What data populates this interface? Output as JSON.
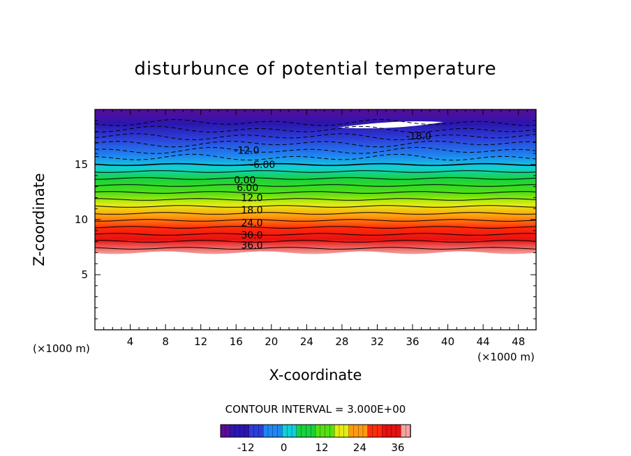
{
  "chart_data": {
    "type": "heatmap",
    "title": "disturbunce of potential temperature",
    "xlabel": "X-coordinate",
    "ylabel": "Z-coordinate",
    "x_unit": "(×1000 m)",
    "y_unit": "(×1000 m)",
    "xlim": [
      0,
      50
    ],
    "ylim": [
      0,
      20
    ],
    "x_ticks": [
      4,
      8,
      12,
      16,
      20,
      24,
      28,
      32,
      36,
      40,
      44,
      48
    ],
    "y_ticks": [
      5,
      10,
      15
    ],
    "field_bottom_z": 7,
    "contour_interval_label": "CONTOUR INTERVAL = 3.000E+00",
    "contour_interval": 3,
    "contour_labels": [
      {
        "text": "-18.0",
        "x": 36.7,
        "z": 17.6
      },
      {
        "text": "-12.0",
        "x": 17.2,
        "z": 16.3
      },
      {
        "text": "-6.00",
        "x": 19.0,
        "z": 15.0
      },
      {
        "text": "0.00",
        "x": 17.0,
        "z": 13.6
      },
      {
        "text": "6.00",
        "x": 17.3,
        "z": 12.9
      },
      {
        "text": "12.0",
        "x": 17.8,
        "z": 12.0
      },
      {
        "text": "18.0",
        "x": 17.8,
        "z": 10.9
      },
      {
        "text": "24.0",
        "x": 17.8,
        "z": 9.7
      },
      {
        "text": "30.0",
        "x": 17.8,
        "z": 8.6
      },
      {
        "text": "36.0",
        "x": 17.8,
        "z": 7.7
      }
    ],
    "colorbar": {
      "min": -20,
      "max": 40,
      "ticks": [
        -12,
        0,
        12,
        24,
        36
      ]
    }
  }
}
